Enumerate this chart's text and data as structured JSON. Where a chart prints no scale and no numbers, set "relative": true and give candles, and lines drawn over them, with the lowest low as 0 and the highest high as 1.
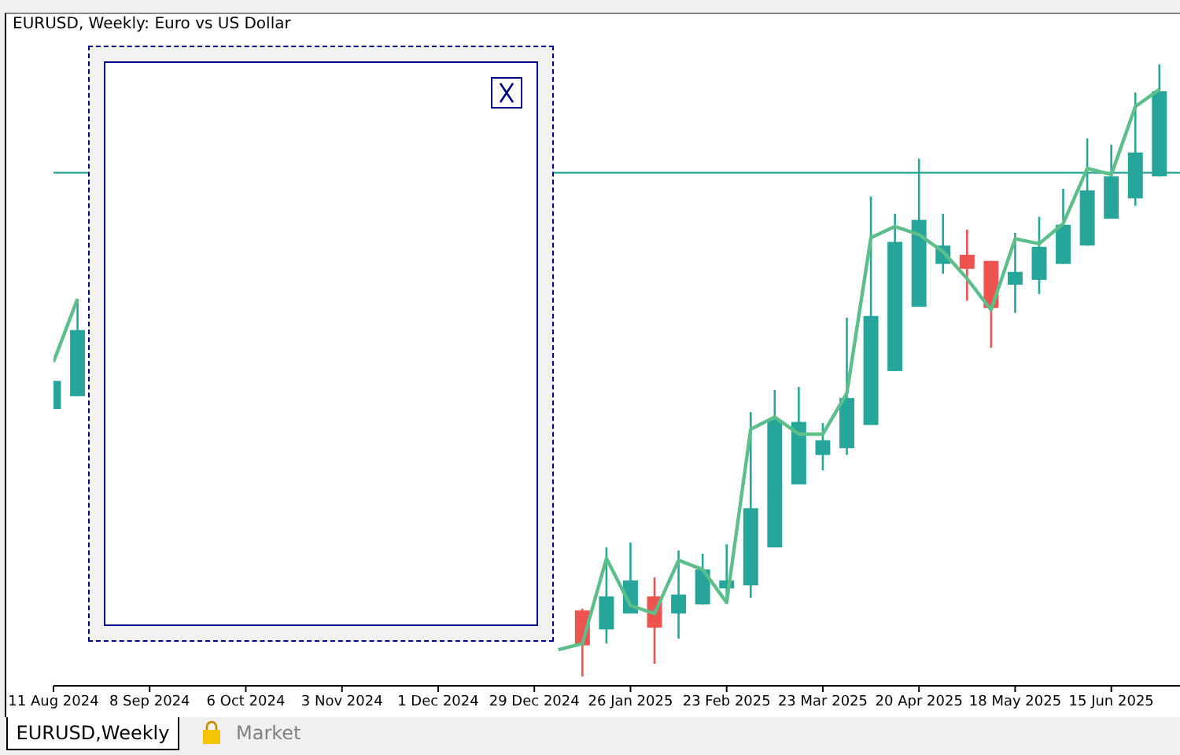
{
  "chart_data": {
    "type": "candlestick",
    "title": "EURUSD, Weekly:  Euro vs US Dollar",
    "annotations": [
      "EURUSD,Weekly",
      "Market"
    ],
    "relative": true,
    "x": [
      "2024-08-11",
      "2024-08-18",
      "2025-01-12",
      "2025-01-19",
      "2025-01-26",
      "2025-02-02",
      "2025-02-09",
      "2025-02-16",
      "2025-02-23",
      "2025-03-02",
      "2025-03-09",
      "2025-03-16",
      "2025-03-23",
      "2025-03-30",
      "2025-04-06",
      "2025-04-13",
      "2025-04-20",
      "2025-04-27",
      "2025-05-04",
      "2025-05-11",
      "2025-05-18",
      "2025-05-25",
      "2025-06-01",
      "2025-06-08",
      "2025-06-15",
      "2025-06-22",
      "2025-06-29"
    ],
    "ohlc": [
      [
        0.437,
        0.483,
        0.437,
        0.483
      ],
      [
        0.458,
        0.617,
        0.458,
        0.566
      ],
      [
        0.108,
        0.111,
        0,
        0.051
      ],
      [
        0.077,
        0.211,
        0.054,
        0.131
      ],
      [
        0.103,
        0.219,
        0.103,
        0.157
      ],
      [
        0.131,
        0.162,
        0.021,
        0.08
      ],
      [
        0.103,
        0.206,
        0.062,
        0.134
      ],
      [
        0.118,
        0.201,
        0.118,
        0.175
      ],
      [
        0.144,
        0.216,
        0.121,
        0.157
      ],
      [
        0.149,
        0.432,
        0.129,
        0.275
      ],
      [
        0.211,
        0.468,
        0.211,
        0.419
      ],
      [
        0.314,
        0.473,
        0.314,
        0.416
      ],
      [
        0.362,
        0.414,
        0.337,
        0.386
      ],
      [
        0.373,
        0.586,
        0.362,
        0.455
      ],
      [
        0.411,
        0.784,
        0.411,
        0.589
      ],
      [
        0.499,
        0.756,
        0.499,
        0.71
      ],
      [
        0.604,
        0.846,
        0.604,
        0.746
      ],
      [
        0.674,
        0.756,
        0.658,
        0.704
      ],
      [
        0.689,
        0.73,
        0.614,
        0.666
      ],
      [
        0.679,
        0.679,
        0.537,
        0.602
      ],
      [
        0.64,
        0.725,
        0.594,
        0.661
      ],
      [
        0.648,
        0.751,
        0.625,
        0.702
      ],
      [
        0.674,
        0.797,
        0.674,
        0.738
      ],
      [
        0.704,
        0.879,
        0.704,
        0.794
      ],
      [
        0.748,
        0.869,
        0.748,
        0.817
      ],
      [
        0.781,
        0.954,
        0.769,
        0.856
      ],
      [
        0.817,
        1,
        0.817,
        0.956
      ]
    ],
    "colors": [
      "#26a69a",
      "#26a69a",
      "#ef5350",
      "#26a69a",
      "#26a69a",
      "#ef5350",
      "#26a69a",
      "#26a69a",
      "#26a69a",
      "#26a69a",
      "#26a69a",
      "#26a69a",
      "#26a69a",
      "#26a69a",
      "#26a69a",
      "#26a69a",
      "#26a69a",
      "#26a69a",
      "#ef5350",
      "#ef5350",
      "#26a69a",
      "#26a69a",
      "#26a69a",
      "#26a69a",
      "#26a69a",
      "#26a69a",
      "#26a69a"
    ],
    "series": [
      {
        "type": "line",
        "color": "#5cbf8a",
        "x": [
          "2024-08-11",
          "2024-08-18",
          "2024-08-25",
          "2025-01-05",
          "2025-01-12",
          "2025-01-19",
          "2025-01-26",
          "2025-02-02",
          "2025-02-09",
          "2025-02-16",
          "2025-02-23",
          "2025-03-02",
          "2025-03-09",
          "2025-03-16",
          "2025-03-23",
          "2025-03-30",
          "2025-04-06",
          "2025-04-13",
          "2025-04-20",
          "2025-04-27",
          "2025-05-04",
          "2025-05-11",
          "2025-05-18",
          "2025-05-25",
          "2025-06-01",
          "2025-06-08",
          "2025-06-15",
          "2025-06-22",
          "2025-06-29"
        ],
        "values": [
          0.514,
          0.617,
          null,
          0.044,
          0.054,
          0.193,
          0.116,
          0.103,
          0.19,
          0.175,
          0.121,
          0.404,
          0.424,
          0.396,
          0.396,
          0.463,
          0.717,
          0.735,
          0.722,
          0.694,
          0.65,
          0.599,
          0.715,
          0.707,
          0.74,
          0.83,
          0.82,
          0.931,
          0.959
        ]
      }
    ],
    "ref_lines": [
      {
        "axis": "y",
        "value": 0.823,
        "color": "#26a69a"
      }
    ],
    "xlim": [
      "2024-08-11",
      "2025-07-05"
    ],
    "xticks": [
      {
        "value": "2024-08-11",
        "label": "11 Aug 2024"
      },
      {
        "value": "2024-09-08",
        "label": "8 Sep 2024"
      },
      {
        "value": "2024-10-06",
        "label": "6 Oct 2024"
      },
      {
        "value": "2024-11-03",
        "label": "3 Nov 2024"
      },
      {
        "value": "2024-12-01",
        "label": "1 Dec 2024"
      },
      {
        "value": "2024-12-29",
        "label": "29 Dec 2024"
      },
      {
        "value": "2025-01-26",
        "label": "26 Jan 2025"
      },
      {
        "value": "2025-02-23",
        "label": "23 Feb 2025"
      },
      {
        "value": "2025-03-23",
        "label": "23 Mar 2025"
      },
      {
        "value": "2025-04-20",
        "label": "20 Apr 2025"
      },
      {
        "value": "2025-05-18",
        "label": "18 May 2025"
      },
      {
        "value": "2025-06-15",
        "label": "15 Jun 2025"
      }
    ]
  }
}
